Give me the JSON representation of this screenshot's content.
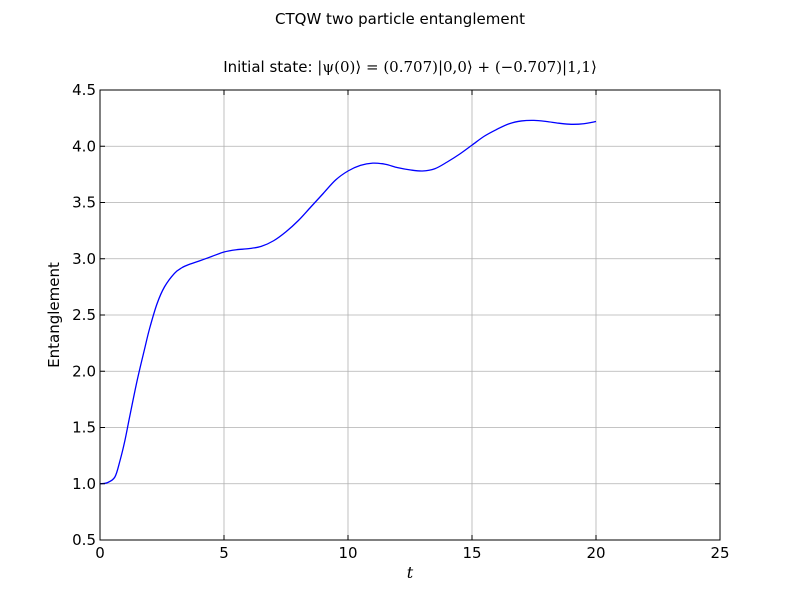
{
  "figure_title": "CTQW two particle entanglement",
  "subtitle": {
    "prefix": "Initial state: ",
    "formula": "|ψ(0)⟩ = (0.707)|0,0⟩ + (−0.707)|1,1⟩"
  },
  "chart_data": {
    "type": "line",
    "xlabel": "t",
    "ylabel": "Entanglement",
    "xlim": [
      0,
      25
    ],
    "ylim": [
      0.5,
      4.5
    ],
    "xticks": [
      0,
      5,
      10,
      15,
      20,
      25
    ],
    "yticks": [
      0.5,
      1.0,
      1.5,
      2.0,
      2.5,
      3.0,
      3.5,
      4.0,
      4.5
    ],
    "xtick_labels": [
      "0",
      "5",
      "10",
      "15",
      "20",
      "25"
    ],
    "ytick_labels": [
      "0.5",
      "1.0",
      "1.5",
      "2.0",
      "2.5",
      "3.0",
      "3.5",
      "4.0",
      "4.5"
    ],
    "grid": true,
    "legend": "none",
    "series": [
      {
        "color": "#0000ff",
        "x": [
          0,
          0.3,
          0.6,
          0.8,
          1.0,
          1.2,
          1.5,
          1.8,
          2.0,
          2.3,
          2.6,
          3.0,
          3.3,
          3.6,
          4.0,
          4.5,
          5.0,
          5.5,
          6.0,
          6.5,
          7.0,
          7.5,
          8.0,
          8.5,
          9.0,
          9.5,
          10.0,
          10.5,
          11.0,
          11.5,
          12.0,
          12.5,
          13.0,
          13.5,
          14.0,
          14.5,
          15.0,
          15.5,
          16.0,
          16.5,
          17.0,
          17.5,
          18.0,
          18.5,
          19.0,
          19.5,
          20.0
        ],
        "y": [
          1.0,
          1.01,
          1.06,
          1.2,
          1.38,
          1.6,
          1.92,
          2.2,
          2.38,
          2.6,
          2.75,
          2.87,
          2.92,
          2.95,
          2.98,
          3.02,
          3.06,
          3.08,
          3.09,
          3.11,
          3.16,
          3.24,
          3.34,
          3.46,
          3.58,
          3.7,
          3.78,
          3.83,
          3.85,
          3.84,
          3.81,
          3.79,
          3.78,
          3.8,
          3.86,
          3.93,
          4.01,
          4.09,
          4.15,
          4.2,
          4.225,
          4.23,
          4.22,
          4.205,
          4.195,
          4.2,
          4.22
        ]
      }
    ]
  }
}
